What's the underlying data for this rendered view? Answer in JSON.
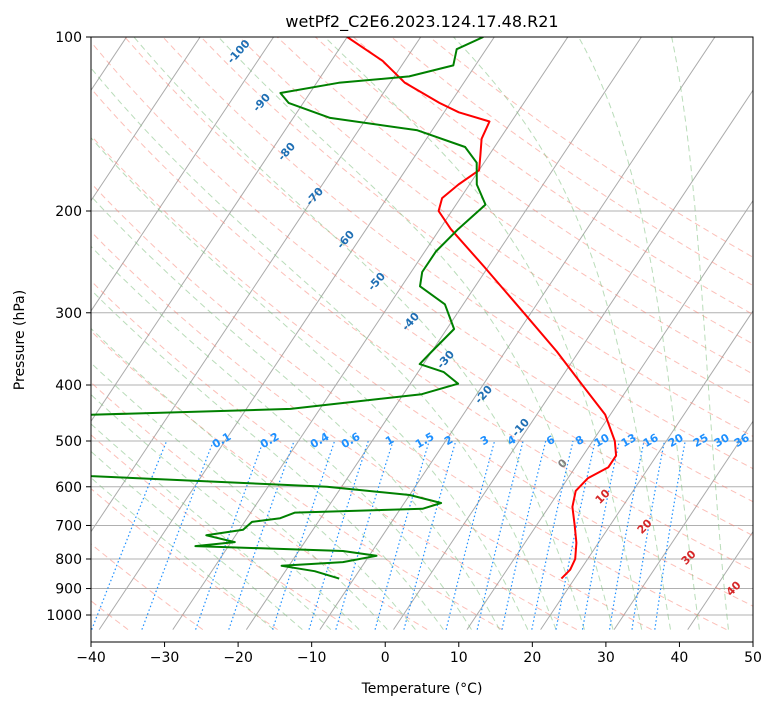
{
  "chart_data": {
    "type": "line",
    "subtype": "skew-t log-p",
    "title": "wetPf2_C2E6.2023.124.17.48.R21",
    "xlabel": "Temperature (°C)",
    "ylabel": "Pressure (hPa)",
    "xlim": [
      -40,
      50
    ],
    "ylim": [
      1050,
      100
    ],
    "y_scale": "log",
    "grid": true,
    "x_ticks": [
      -40,
      -30,
      -20,
      -10,
      0,
      10,
      20,
      30,
      40,
      50
    ],
    "x_tick_labels": [
      "−40",
      "−30",
      "−20",
      "−10",
      "0",
      "10",
      "20",
      "30",
      "40",
      "50"
    ],
    "y_ticks": [
      100,
      200,
      300,
      400,
      500,
      600,
      700,
      800,
      900,
      1000
    ],
    "y_tick_labels": [
      "100",
      "200",
      "300",
      "400",
      "500",
      "600",
      "700",
      "800",
      "900",
      "1000"
    ],
    "series": [
      {
        "role": "temperature",
        "color": "#ff0000",
        "points": [
          {
            "p": 865,
            "t": 18.2
          },
          {
            "p": 835,
            "t": 18.6
          },
          {
            "p": 800,
            "t": 18.3
          },
          {
            "p": 750,
            "t": 17.0
          },
          {
            "p": 700,
            "t": 15.2
          },
          {
            "p": 650,
            "t": 13.2
          },
          {
            "p": 610,
            "t": 12.2
          },
          {
            "p": 580,
            "t": 12.7
          },
          {
            "p": 555,
            "t": 14.5
          },
          {
            "p": 530,
            "t": 14.5
          },
          {
            "p": 500,
            "t": 13.0
          },
          {
            "p": 450,
            "t": 9.3
          },
          {
            "p": 400,
            "t": 3.5
          },
          {
            "p": 350,
            "t": -3.0
          },
          {
            "p": 300,
            "t": -11.0
          },
          {
            "p": 250,
            "t": -20.5
          },
          {
            "p": 215,
            "t": -28.5
          },
          {
            "p": 200,
            "t": -31.8
          },
          {
            "p": 190,
            "t": -32.5
          },
          {
            "p": 180,
            "t": -31.5
          },
          {
            "p": 170,
            "t": -30.0
          },
          {
            "p": 160,
            "t": -31.2
          },
          {
            "p": 150,
            "t": -32.5
          },
          {
            "p": 140,
            "t": -33.0
          },
          {
            "p": 135,
            "t": -38.0
          },
          {
            "p": 130,
            "t": -41.5
          },
          {
            "p": 120,
            "t": -48.0
          },
          {
            "p": 110,
            "t": -53.0
          },
          {
            "p": 100,
            "t": -60.0
          }
        ]
      },
      {
        "role": "dewpoint",
        "color": "#008000",
        "points": [
          {
            "p": 865,
            "t": -12.0
          },
          {
            "p": 840,
            "t": -16.0
          },
          {
            "p": 822,
            "t": -21.0
          },
          {
            "p": 810,
            "t": -13.0
          },
          {
            "p": 790,
            "t": -9.0
          },
          {
            "p": 775,
            "t": -14.0
          },
          {
            "p": 760,
            "t": -34.5
          },
          {
            "p": 748,
            "t": -29.5
          },
          {
            "p": 728,
            "t": -34.0
          },
          {
            "p": 712,
            "t": -29.5
          },
          {
            "p": 690,
            "t": -29.0
          },
          {
            "p": 680,
            "t": -25.5
          },
          {
            "p": 665,
            "t": -24.0
          },
          {
            "p": 655,
            "t": -7.0
          },
          {
            "p": 640,
            "t": -5.0
          },
          {
            "p": 620,
            "t": -10.0
          },
          {
            "p": 600,
            "t": -22.0
          },
          {
            "p": 575,
            "t": -55.0
          },
          {
            "p": 490,
            "t": -75.0
          },
          {
            "p": 465,
            "t": -90.0
          },
          {
            "p": 455,
            "t": -72.0
          },
          {
            "p": 440,
            "t": -34.0
          },
          {
            "p": 415,
            "t": -17.5
          },
          {
            "p": 398,
            "t": -13.5
          },
          {
            "p": 380,
            "t": -16.5
          },
          {
            "p": 368,
            "t": -20.5
          },
          {
            "p": 350,
            "t": -20.0
          },
          {
            "p": 320,
            "t": -19.0
          },
          {
            "p": 290,
            "t": -22.5
          },
          {
            "p": 270,
            "t": -27.5
          },
          {
            "p": 255,
            "t": -28.5
          },
          {
            "p": 235,
            "t": -28.5
          },
          {
            "p": 215,
            "t": -27.5
          },
          {
            "p": 195,
            "t": -26.0
          },
          {
            "p": 180,
            "t": -29.0
          },
          {
            "p": 165,
            "t": -31.0
          },
          {
            "p": 155,
            "t": -34.0
          },
          {
            "p": 145,
            "t": -42.0
          },
          {
            "p": 138,
            "t": -55.0
          },
          {
            "p": 130,
            "t": -62.0
          },
          {
            "p": 125,
            "t": -64.0
          },
          {
            "p": 120,
            "t": -57.0
          },
          {
            "p": 117,
            "t": -48.0
          },
          {
            "p": 112,
            "t": -43.0
          },
          {
            "p": 105,
            "t": -44.0
          },
          {
            "p": 100,
            "t": -41.5
          }
        ]
      }
    ],
    "dry_adiabat_labels": [
      "-100",
      "-90",
      "-80",
      "-70",
      "-60",
      "-50",
      "-40",
      "-30",
      "-20",
      "-10"
    ],
    "mixing_ratio_labels": [
      "0.1",
      "0.2",
      "0.4",
      "0.6",
      "1",
      "1.5",
      "2",
      "3",
      "4",
      "6",
      "8",
      "10",
      "13",
      "16",
      "20",
      "25",
      "30",
      "36"
    ],
    "moist_adiabat_labels": [
      "0",
      "10",
      "20",
      "30",
      "40"
    ],
    "colors": {
      "isotherm": "#aaaaaa",
      "dry_adiabat": "#fa8072",
      "moist_adiabat": "#7fc07f",
      "mixing_ratio": "#1e90ff",
      "temperature": "#ff0000",
      "dewpoint": "#008000",
      "adiabat_label": "#1f6fb4",
      "mixing_label": "#1e90ff",
      "moist_label": "#d62728"
    }
  }
}
